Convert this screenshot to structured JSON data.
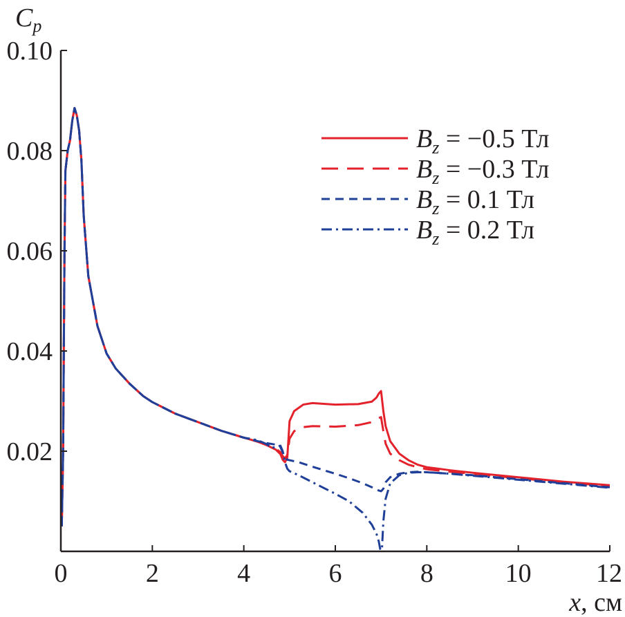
{
  "chart_data": {
    "type": "line",
    "title": "",
    "ylabel": "C",
    "ylabel_subscript": "p",
    "xlabel": "x",
    "xlabel_unit": ", см",
    "xlim": [
      0,
      12
    ],
    "ylim": [
      0,
      0.1
    ],
    "x_ticks": [
      "0",
      "2",
      "4",
      "6",
      "8",
      "10",
      "12"
    ],
    "y_ticks": [
      "0.02",
      "0.04",
      "0.06",
      "0.08",
      "0.10"
    ],
    "x_tick_values": [
      0,
      2,
      4,
      6,
      8,
      10,
      12
    ],
    "y_tick_values": [
      0.02,
      0.04,
      0.06,
      0.08,
      0.1
    ],
    "grid": false,
    "legend_position": "top-right",
    "series": [
      {
        "name": "Bz = −0.5 Тл",
        "legend_var": "B",
        "legend_sub": "z",
        "legend_value": " = −0.5 Тл",
        "color": "#e3222c",
        "dash": "solid",
        "x": [
          0.02,
          0.05,
          0.08,
          0.1,
          0.15,
          0.2,
          0.25,
          0.3,
          0.35,
          0.4,
          0.45,
          0.5,
          0.6,
          0.8,
          1.0,
          1.2,
          1.5,
          1.8,
          2.0,
          2.5,
          3.0,
          3.5,
          4.0,
          4.3,
          4.5,
          4.7,
          4.8,
          4.85,
          4.9,
          4.95,
          5.0,
          5.1,
          5.3,
          5.5,
          6.0,
          6.5,
          6.8,
          6.9,
          6.95,
          7.0,
          7.05,
          7.1,
          7.2,
          7.4,
          7.6,
          7.8,
          8.0,
          8.5,
          9.0,
          10.0,
          11.0,
          12.0
        ],
        "y": [
          0.005,
          0.02,
          0.06,
          0.076,
          0.08,
          0.082,
          0.086,
          0.0885,
          0.087,
          0.084,
          0.078,
          0.067,
          0.055,
          0.045,
          0.0395,
          0.0365,
          0.0335,
          0.031,
          0.0298,
          0.0275,
          0.0258,
          0.0241,
          0.0227,
          0.0219,
          0.0212,
          0.0203,
          0.0194,
          0.0183,
          0.0178,
          0.0187,
          0.026,
          0.028,
          0.0293,
          0.0296,
          0.0293,
          0.0294,
          0.0299,
          0.0307,
          0.0315,
          0.032,
          0.028,
          0.025,
          0.022,
          0.0195,
          0.0182,
          0.0173,
          0.0168,
          0.0162,
          0.0157,
          0.0148,
          0.0139,
          0.0132
        ]
      },
      {
        "name": "Bz = −0.3 Тл",
        "legend_var": "B",
        "legend_sub": "z",
        "legend_value": " = −0.3 Тл",
        "color": "#e3222c",
        "dash": "dashed",
        "x": [
          0.02,
          0.05,
          0.08,
          0.1,
          0.15,
          0.2,
          0.25,
          0.3,
          0.35,
          0.4,
          0.45,
          0.5,
          0.6,
          0.8,
          1.0,
          1.2,
          1.5,
          1.8,
          2.0,
          2.5,
          3.0,
          3.5,
          4.0,
          4.3,
          4.5,
          4.7,
          4.8,
          4.85,
          4.9,
          4.95,
          5.0,
          5.1,
          5.3,
          5.5,
          6.0,
          6.5,
          6.8,
          6.9,
          6.95,
          7.0,
          7.05,
          7.1,
          7.2,
          7.4,
          7.6,
          7.8,
          8.0,
          8.5,
          9.0,
          10.0,
          11.0,
          12.0
        ],
        "y": [
          0.005,
          0.02,
          0.06,
          0.076,
          0.08,
          0.082,
          0.086,
          0.0885,
          0.087,
          0.084,
          0.078,
          0.067,
          0.055,
          0.045,
          0.0395,
          0.0365,
          0.0335,
          0.031,
          0.0298,
          0.0275,
          0.0258,
          0.0241,
          0.0227,
          0.0219,
          0.0213,
          0.0205,
          0.0198,
          0.019,
          0.0186,
          0.0192,
          0.0225,
          0.024,
          0.0248,
          0.025,
          0.0249,
          0.0252,
          0.0258,
          0.0263,
          0.0266,
          0.0268,
          0.024,
          0.0215,
          0.0195,
          0.0182,
          0.0173,
          0.0168,
          0.0164,
          0.0159,
          0.0155,
          0.0146,
          0.0138,
          0.013
        ]
      },
      {
        "name": "Bz = 0.1 Тл",
        "legend_var": "B",
        "legend_sub": "z",
        "legend_value": " = 0.1 Тл",
        "color": "#1f3f98",
        "dash": "short-dashed",
        "x": [
          0.02,
          0.05,
          0.08,
          0.1,
          0.15,
          0.2,
          0.25,
          0.3,
          0.35,
          0.4,
          0.45,
          0.5,
          0.6,
          0.8,
          1.0,
          1.2,
          1.5,
          1.8,
          2.0,
          2.5,
          3.0,
          3.5,
          4.0,
          4.3,
          4.5,
          4.7,
          4.8,
          4.85,
          4.9,
          4.95,
          5.0,
          5.2,
          5.5,
          6.0,
          6.3,
          6.6,
          6.8,
          6.9,
          7.0,
          7.05,
          7.1,
          7.2,
          7.4,
          7.6,
          7.8,
          8.0,
          8.5,
          9.0,
          10.0,
          11.0,
          12.0
        ],
        "y": [
          0.005,
          0.02,
          0.06,
          0.076,
          0.08,
          0.082,
          0.086,
          0.0885,
          0.087,
          0.084,
          0.078,
          0.067,
          0.055,
          0.045,
          0.0395,
          0.0365,
          0.0335,
          0.031,
          0.0298,
          0.0275,
          0.0258,
          0.0241,
          0.0227,
          0.022,
          0.0216,
          0.0213,
          0.0208,
          0.0198,
          0.0188,
          0.0183,
          0.0182,
          0.0178,
          0.0169,
          0.0155,
          0.0146,
          0.0136,
          0.0128,
          0.0123,
          0.012,
          0.0125,
          0.0138,
          0.0148,
          0.0155,
          0.0158,
          0.0159,
          0.0158,
          0.0155,
          0.0152,
          0.0144,
          0.0136,
          0.0128
        ]
      },
      {
        "name": "Bz = 0.2 Тл",
        "legend_var": "B",
        "legend_sub": "z",
        "legend_value": " = 0.2 Тл",
        "color": "#1f3f98",
        "dash": "dash-dot",
        "x": [
          0.02,
          0.05,
          0.08,
          0.1,
          0.15,
          0.2,
          0.25,
          0.3,
          0.35,
          0.4,
          0.45,
          0.5,
          0.6,
          0.8,
          1.0,
          1.2,
          1.5,
          1.8,
          2.0,
          2.5,
          3.0,
          3.5,
          4.0,
          4.3,
          4.5,
          4.6,
          4.7,
          4.8,
          4.85,
          4.9,
          4.95,
          5.0,
          5.2,
          5.5,
          6.0,
          6.3,
          6.6,
          6.8,
          6.9,
          6.95,
          6.98,
          7.0,
          7.02,
          7.05,
          7.1,
          7.2,
          7.4,
          7.6,
          7.8,
          8.0,
          8.5,
          9.0,
          10.0,
          11.0,
          12.0
        ],
        "y": [
          0.005,
          0.02,
          0.06,
          0.076,
          0.08,
          0.082,
          0.086,
          0.0885,
          0.087,
          0.084,
          0.078,
          0.067,
          0.055,
          0.045,
          0.0395,
          0.0365,
          0.0335,
          0.031,
          0.0298,
          0.0275,
          0.0258,
          0.0241,
          0.0227,
          0.0222,
          0.0214,
          0.0207,
          0.0208,
          0.0211,
          0.02,
          0.0178,
          0.0165,
          0.016,
          0.0152,
          0.0138,
          0.0115,
          0.01,
          0.0077,
          0.0053,
          0.0035,
          0.002,
          0.0005,
          0.0002,
          0.0005,
          0.006,
          0.0105,
          0.0136,
          0.0152,
          0.0157,
          0.0158,
          0.0158,
          0.0155,
          0.0151,
          0.0143,
          0.0135,
          0.0127
        ]
      }
    ]
  }
}
